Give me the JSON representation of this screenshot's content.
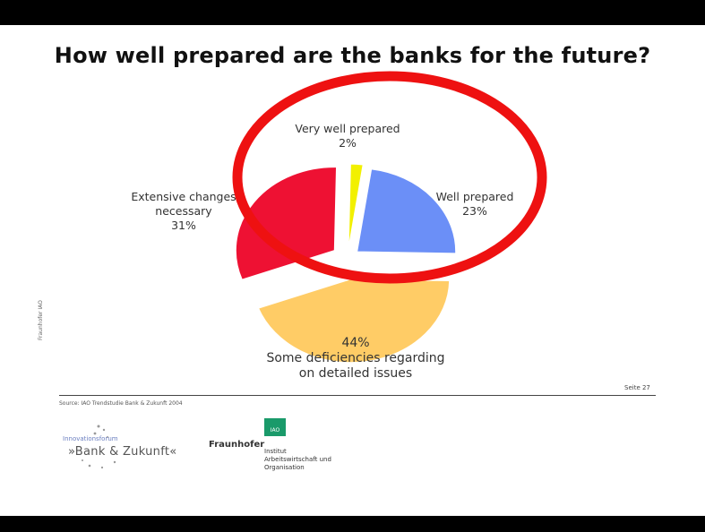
{
  "slide": {
    "title": "How well prepared are the banks for the future?",
    "page_number": "Seite 27",
    "side_text": "Fraunhofer IAO",
    "source": "Source: IAO Trendstudie Bank & Zukunft 2004"
  },
  "logos": {
    "bank_small": "Innovationsforum",
    "bank_main": "»Bank & Zukunft«",
    "fraunhofer": "Fraunhofer",
    "iao_box": "IAO",
    "iao_text": [
      "Institut",
      "Arbeitswirtschaft und",
      "Organisation"
    ]
  },
  "annotation": {
    "shape": "ellipse",
    "color": "#ee1111",
    "target": "Very well prepared and Well prepared slices"
  },
  "chart_data": {
    "type": "pie",
    "title": "How well prepared are the banks for the future?",
    "exploded": true,
    "slices": [
      {
        "label_lines": [
          "Very well prepared",
          "2%"
        ],
        "value": 2,
        "color": "#f2f000"
      },
      {
        "label_lines": [
          "Well prepared",
          "23%"
        ],
        "value": 23,
        "color": "#6b8ff7"
      },
      {
        "label_lines": [
          "44%",
          "Some deficiencies regarding",
          "on detailed issues"
        ],
        "value": 44,
        "color": "#ffcc66"
      },
      {
        "label_lines": [
          "Extensive changes",
          "necessary",
          "31%"
        ],
        "value": 31,
        "color": "#ee1133"
      }
    ]
  }
}
